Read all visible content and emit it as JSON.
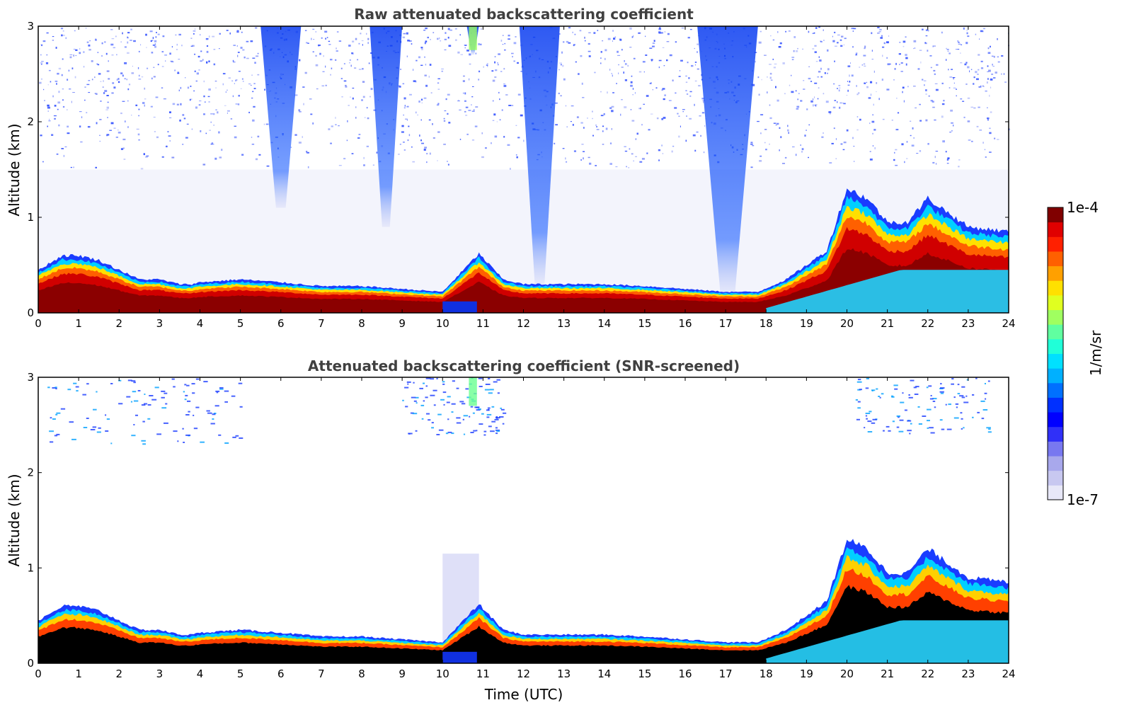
{
  "chart_data": [
    {
      "type": "heatmap",
      "title": "Raw attenuated backscattering coefficient",
      "xlabel": "",
      "ylabel": "Altitude (km)",
      "xlim": [
        0,
        24
      ],
      "ylim": [
        0,
        3
      ],
      "xticks": [
        "0",
        "1",
        "2",
        "3",
        "4",
        "5",
        "6",
        "7",
        "8",
        "9",
        "10",
        "11",
        "12",
        "13",
        "14",
        "15",
        "16",
        "17",
        "18",
        "19",
        "20",
        "21",
        "22",
        "23",
        "24"
      ],
      "yticks": [
        "0",
        "1",
        "2",
        "3"
      ],
      "boundary_layer_top_km": [
        [
          0,
          0.45
        ],
        [
          0.6,
          0.6
        ],
        [
          1,
          0.6
        ],
        [
          1.5,
          0.55
        ],
        [
          2,
          0.45
        ],
        [
          2.5,
          0.35
        ],
        [
          3,
          0.35
        ],
        [
          3.5,
          0.3
        ],
        [
          3.8,
          0.3
        ],
        [
          4,
          0.32
        ],
        [
          5,
          0.35
        ],
        [
          6,
          0.32
        ],
        [
          7,
          0.28
        ],
        [
          8,
          0.28
        ],
        [
          9,
          0.25
        ],
        [
          10,
          0.22
        ],
        [
          10.9,
          0.62
        ],
        [
          11.5,
          0.35
        ],
        [
          12,
          0.3
        ],
        [
          13,
          0.3
        ],
        [
          14,
          0.3
        ],
        [
          15,
          0.28
        ],
        [
          16,
          0.25
        ],
        [
          17,
          0.22
        ],
        [
          17.8,
          0.22
        ],
        [
          18.5,
          0.35
        ],
        [
          19,
          0.5
        ],
        [
          19.5,
          0.65
        ],
        [
          20,
          1.3
        ],
        [
          20.5,
          1.2
        ],
        [
          21,
          0.95
        ],
        [
          21.5,
          0.95
        ],
        [
          22,
          1.2
        ],
        [
          22.5,
          1.05
        ],
        [
          23,
          0.9
        ],
        [
          24,
          0.85
        ]
      ],
      "virga_shafts_km": [
        {
          "x0": 5.5,
          "x1": 6.5,
          "base": 1.1
        },
        {
          "x0": 8.2,
          "x1": 9.0,
          "base": 0.9
        },
        {
          "x0": 10.6,
          "x1": 10.9,
          "base": 2.7
        },
        {
          "x0": 11.9,
          "x1": 12.9,
          "base": 0.3
        },
        {
          "x0": 16.3,
          "x1": 17.8,
          "base": 0.2
        }
      ]
    },
    {
      "type": "heatmap",
      "title": "Attenuated backscattering coefficient (SNR-screened)",
      "xlabel": "Time (UTC)",
      "ylabel": "Altitude (km)",
      "xlim": [
        0,
        24
      ],
      "ylim": [
        0,
        3
      ],
      "xticks": [
        "0",
        "1",
        "2",
        "3",
        "4",
        "5",
        "6",
        "7",
        "8",
        "9",
        "10",
        "11",
        "12",
        "13",
        "14",
        "15",
        "16",
        "17",
        "18",
        "19",
        "20",
        "21",
        "22",
        "23",
        "24"
      ],
      "yticks": [
        "0",
        "1",
        "2",
        "3"
      ],
      "boundary_layer_top_km": [
        [
          0,
          0.45
        ],
        [
          0.6,
          0.6
        ],
        [
          1,
          0.6
        ],
        [
          1.5,
          0.55
        ],
        [
          2,
          0.45
        ],
        [
          2.5,
          0.35
        ],
        [
          3,
          0.35
        ],
        [
          3.5,
          0.3
        ],
        [
          3.8,
          0.3
        ],
        [
          4,
          0.32
        ],
        [
          5,
          0.35
        ],
        [
          6,
          0.32
        ],
        [
          7,
          0.28
        ],
        [
          8,
          0.28
        ],
        [
          9,
          0.25
        ],
        [
          10,
          0.22
        ],
        [
          10.9,
          0.62
        ],
        [
          11.5,
          0.35
        ],
        [
          12,
          0.3
        ],
        [
          13,
          0.3
        ],
        [
          14,
          0.3
        ],
        [
          15,
          0.28
        ],
        [
          16,
          0.25
        ],
        [
          17,
          0.22
        ],
        [
          17.8,
          0.22
        ],
        [
          18.5,
          0.35
        ],
        [
          19,
          0.5
        ],
        [
          19.5,
          0.65
        ],
        [
          20,
          1.3
        ],
        [
          20.5,
          1.2
        ],
        [
          21,
          0.95
        ],
        [
          21.5,
          0.95
        ],
        [
          22,
          1.2
        ],
        [
          22.5,
          1.05
        ],
        [
          23,
          0.9
        ],
        [
          24,
          0.85
        ]
      ]
    }
  ],
  "colorbar": {
    "label": "1/m/sr",
    "max_label": "1e-4",
    "min_label": "1e-7",
    "colors": [
      "#e8e8f8",
      "#c8c8f0",
      "#a8a8ec",
      "#7878f0",
      "#3030f8",
      "#0000ff",
      "#0030ff",
      "#0070ff",
      "#00b0ff",
      "#00e0ff",
      "#20ffd8",
      "#60ffa0",
      "#a0ff60",
      "#e0ff20",
      "#ffe000",
      "#ffa000",
      "#ff6000",
      "#ff2000",
      "#e00000",
      "#800000"
    ]
  }
}
